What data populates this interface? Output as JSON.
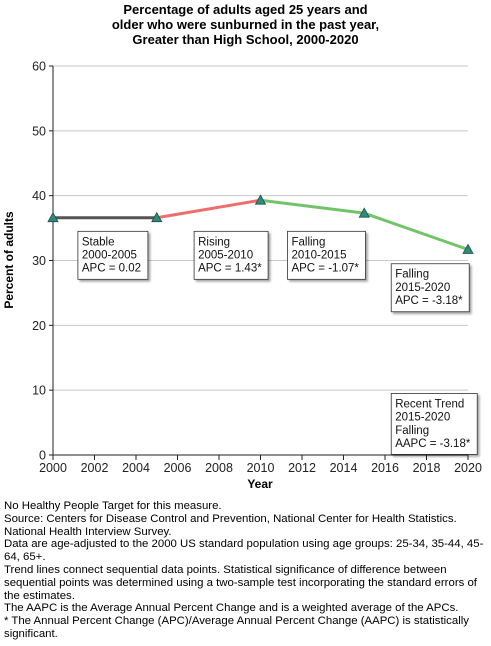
{
  "chart_data": {
    "type": "line",
    "title_lines": [
      "Percentage of adults aged 25 years and",
      "older who were sunburned in the past year,",
      "Greater than High School,  2000-2020"
    ],
    "xlabel": "Year",
    "ylabel": "Percent of adults",
    "xlim": [
      2000,
      2020
    ],
    "ylim": [
      0,
      60
    ],
    "x_ticks": [
      2000,
      2002,
      2004,
      2006,
      2008,
      2010,
      2012,
      2014,
      2016,
      2018,
      2020
    ],
    "y_ticks": [
      0,
      10,
      20,
      30,
      40,
      50,
      60
    ],
    "grid": "horizontal",
    "points": [
      {
        "x": 2000,
        "y": 36.6
      },
      {
        "x": 2005,
        "y": 36.6
      },
      {
        "x": 2010,
        "y": 39.3
      },
      {
        "x": 2015,
        "y": 37.3
      },
      {
        "x": 2020,
        "y": 31.7
      }
    ],
    "segments": [
      {
        "from": 2000,
        "to": 2005,
        "trend": "stable",
        "color": "#555555"
      },
      {
        "from": 2005,
        "to": 2010,
        "trend": "rising",
        "color": "#ee6e6e"
      },
      {
        "from": 2010,
        "to": 2015,
        "trend": "falling",
        "color": "#72c46a"
      },
      {
        "from": 2015,
        "to": 2020,
        "trend": "falling",
        "color": "#72c46a"
      }
    ],
    "marker_color": "#2e8a7a",
    "annotations": [
      {
        "lines": [
          "Stable",
          "2000-2005",
          "APC =  0.02"
        ]
      },
      {
        "lines": [
          "Rising",
          "2005-2010",
          "APC =  1.43*"
        ]
      },
      {
        "lines": [
          "Falling",
          "2010-2015",
          "APC = -1.07*"
        ]
      },
      {
        "lines": [
          "Falling",
          "2015-2020",
          "APC = -3.18*"
        ]
      },
      {
        "lines": [
          "Recent Trend",
          "2015-2020",
          "Falling",
          "AAPC = -3.18*"
        ]
      }
    ]
  },
  "footnotes": [
    "No Healthy People Target for this measure.",
    "Source: Centers for Disease Control and Prevention, National Center for Health Statistics. National Health Interview Survey.",
    "Data are age-adjusted to the 2000 US standard population using age groups: 25-34, 35-44, 45-64, 65+.",
    "Trend lines connect sequential data points. Statistical significance of difference between sequential points was determined using a two-sample test incorporating the standard errors of the estimates.",
    "The AAPC is the Average Annual Percent Change and is a weighted average of the APCs.",
    "* The Annual Percent Change (APC)/Average Annual Percent Change (AAPC) is statistically significant."
  ]
}
